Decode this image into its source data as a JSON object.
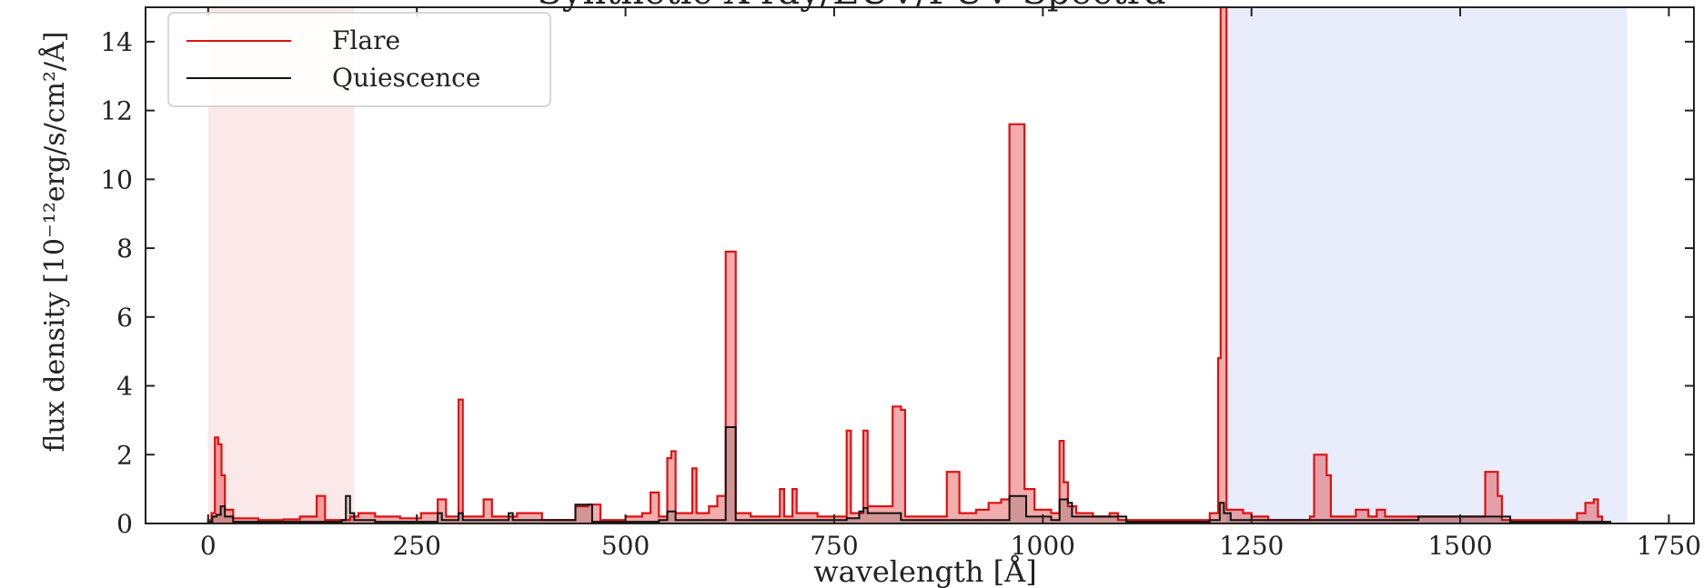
{
  "chart_data": {
    "type": "line",
    "title": "Synthetic X-ray/EUV/FUV Spectra",
    "xlabel": "wavelength [Å]",
    "ylabel": "flux density [10⁻¹²erg/s/cm²/Å]",
    "xlim": [
      -75,
      1780
    ],
    "ylim": [
      0,
      15
    ],
    "xticks": [
      0,
      250,
      500,
      750,
      1000,
      1250,
      1500,
      1750
    ],
    "yticks": [
      0,
      2,
      4,
      6,
      8,
      10,
      12,
      14
    ],
    "grid": false,
    "legend": "top-left",
    "shaded_regions": [
      {
        "x0": 0,
        "x1": 175,
        "color": "#fbe8e8"
      },
      {
        "x0": 1220,
        "x1": 1700,
        "color": "#e9ecfa"
      }
    ],
    "series": [
      {
        "name": "Flare",
        "color": "#dd1111",
        "points": [
          [
            0,
            0.1
          ],
          [
            4,
            0.3
          ],
          [
            8,
            2.5
          ],
          [
            12,
            2.3
          ],
          [
            16,
            1.4
          ],
          [
            20,
            0.4
          ],
          [
            30,
            0.15
          ],
          [
            60,
            0.1
          ],
          [
            90,
            0.12
          ],
          [
            110,
            0.2
          ],
          [
            130,
            0.8
          ],
          [
            140,
            0.1
          ],
          [
            170,
            0.2
          ],
          [
            180,
            0.3
          ],
          [
            200,
            0.2
          ],
          [
            230,
            0.15
          ],
          [
            255,
            0.3
          ],
          [
            275,
            0.7
          ],
          [
            285,
            0.2
          ],
          [
            300,
            3.6
          ],
          [
            305,
            0.2
          ],
          [
            330,
            0.7
          ],
          [
            340,
            0.2
          ],
          [
            370,
            0.3
          ],
          [
            400,
            0.1
          ],
          [
            440,
            0.5
          ],
          [
            455,
            0.55
          ],
          [
            470,
            0.1
          ],
          [
            500,
            0.2
          ],
          [
            520,
            0.3
          ],
          [
            530,
            0.9
          ],
          [
            540,
            0.2
          ],
          [
            550,
            1.9
          ],
          [
            555,
            2.1
          ],
          [
            560,
            0.3
          ],
          [
            580,
            1.6
          ],
          [
            585,
            0.3
          ],
          [
            600,
            0.5
          ],
          [
            610,
            0.8
          ],
          [
            620,
            7.9
          ],
          [
            628,
            7.9
          ],
          [
            632,
            0.3
          ],
          [
            650,
            0.2
          ],
          [
            670,
            0.2
          ],
          [
            685,
            1.0
          ],
          [
            690,
            0.2
          ],
          [
            700,
            1.0
          ],
          [
            705,
            0.3
          ],
          [
            730,
            0.2
          ],
          [
            765,
            2.7
          ],
          [
            770,
            0.3
          ],
          [
            785,
            2.7
          ],
          [
            790,
            0.5
          ],
          [
            820,
            3.4
          ],
          [
            830,
            3.3
          ],
          [
            835,
            0.2
          ],
          [
            860,
            0.2
          ],
          [
            885,
            1.5
          ],
          [
            895,
            1.5
          ],
          [
            900,
            0.3
          ],
          [
            920,
            0.4
          ],
          [
            935,
            0.6
          ],
          [
            950,
            0.7
          ],
          [
            960,
            11.6
          ],
          [
            975,
            11.6
          ],
          [
            978,
            1.0
          ],
          [
            985,
            1.0
          ],
          [
            990,
            0.4
          ],
          [
            1010,
            0.3
          ],
          [
            1020,
            2.4
          ],
          [
            1025,
            1.2
          ],
          [
            1030,
            0.5
          ],
          [
            1040,
            0.3
          ],
          [
            1060,
            0.2
          ],
          [
            1080,
            0.3
          ],
          [
            1090,
            0.1
          ],
          [
            1180,
            0.1
          ],
          [
            1200,
            0.3
          ],
          [
            1210,
            4.8
          ],
          [
            1213,
            15.0
          ],
          [
            1217,
            15.0
          ],
          [
            1220,
            0.4
          ],
          [
            1240,
            0.3
          ],
          [
            1250,
            0.2
          ],
          [
            1270,
            0.1
          ],
          [
            1320,
            0.2
          ],
          [
            1325,
            2.0
          ],
          [
            1335,
            2.0
          ],
          [
            1340,
            1.4
          ],
          [
            1345,
            0.2
          ],
          [
            1370,
            0.2
          ],
          [
            1375,
            0.4
          ],
          [
            1385,
            0.4
          ],
          [
            1390,
            0.2
          ],
          [
            1400,
            0.4
          ],
          [
            1410,
            0.2
          ],
          [
            1470,
            0.2
          ],
          [
            1500,
            0.2
          ],
          [
            1520,
            0.2
          ],
          [
            1530,
            1.5
          ],
          [
            1540,
            1.5
          ],
          [
            1545,
            0.8
          ],
          [
            1550,
            0.1
          ],
          [
            1600,
            0.1
          ],
          [
            1640,
            0.3
          ],
          [
            1650,
            0.6
          ],
          [
            1660,
            0.7
          ],
          [
            1665,
            0.2
          ],
          [
            1670,
            0
          ]
        ]
      },
      {
        "name": "Quiescence",
        "color": "#111111",
        "points": [
          [
            0,
            0.05
          ],
          [
            5,
            0.2
          ],
          [
            10,
            0.25
          ],
          [
            15,
            0.5
          ],
          [
            20,
            0.2
          ],
          [
            30,
            0.05
          ],
          [
            100,
            0.05
          ],
          [
            160,
            0.1
          ],
          [
            165,
            0.8
          ],
          [
            170,
            0.3
          ],
          [
            175,
            0.1
          ],
          [
            200,
            0.05
          ],
          [
            250,
            0.05
          ],
          [
            275,
            0.3
          ],
          [
            280,
            0.1
          ],
          [
            300,
            0.3
          ],
          [
            305,
            0.1
          ],
          [
            330,
            0.1
          ],
          [
            360,
            0.3
          ],
          [
            365,
            0.1
          ],
          [
            440,
            0.55
          ],
          [
            455,
            0.55
          ],
          [
            460,
            0.05
          ],
          [
            540,
            0.1
          ],
          [
            550,
            0.35
          ],
          [
            560,
            0.1
          ],
          [
            610,
            0.1
          ],
          [
            620,
            2.8
          ],
          [
            628,
            2.8
          ],
          [
            632,
            0.1
          ],
          [
            700,
            0.1
          ],
          [
            765,
            0.15
          ],
          [
            780,
            0.35
          ],
          [
            785,
            0.45
          ],
          [
            790,
            0.3
          ],
          [
            800,
            0.3
          ],
          [
            830,
            0.1
          ],
          [
            960,
            0.8
          ],
          [
            975,
            0.8
          ],
          [
            980,
            0.2
          ],
          [
            1010,
            0.1
          ],
          [
            1020,
            0.7
          ],
          [
            1030,
            0.6
          ],
          [
            1035,
            0.2
          ],
          [
            1100,
            0.05
          ],
          [
            1200,
            0.1
          ],
          [
            1212,
            0.6
          ],
          [
            1217,
            0.3
          ],
          [
            1225,
            0.1
          ],
          [
            1430,
            0.1
          ],
          [
            1450,
            0.2
          ],
          [
            1550,
            0.2
          ],
          [
            1560,
            0.05
          ],
          [
            1670,
            0.05
          ],
          [
            1680,
            0
          ]
        ]
      }
    ]
  }
}
